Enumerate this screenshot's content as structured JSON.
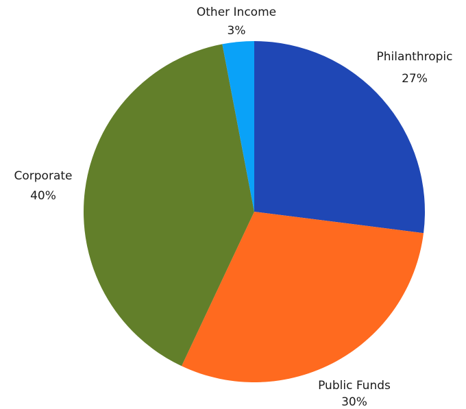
{
  "chart_data": {
    "type": "pie",
    "slices": [
      {
        "label": "Philanthropic",
        "value": 27,
        "value_label": "27%",
        "color": "#1F47B5"
      },
      {
        "label": "Public Funds",
        "value": 30,
        "value_label": "30%",
        "color": "#FF6A1F"
      },
      {
        "label": "Corporate",
        "value": 40,
        "value_label": "40%",
        "color": "#627F2A"
      },
      {
        "label": "Other Income",
        "value": 3,
        "value_label": "3%",
        "color": "#0AA2F8"
      }
    ],
    "start_angle": "top (12 o'clock)",
    "direction": "clockwise",
    "legend": "none"
  }
}
